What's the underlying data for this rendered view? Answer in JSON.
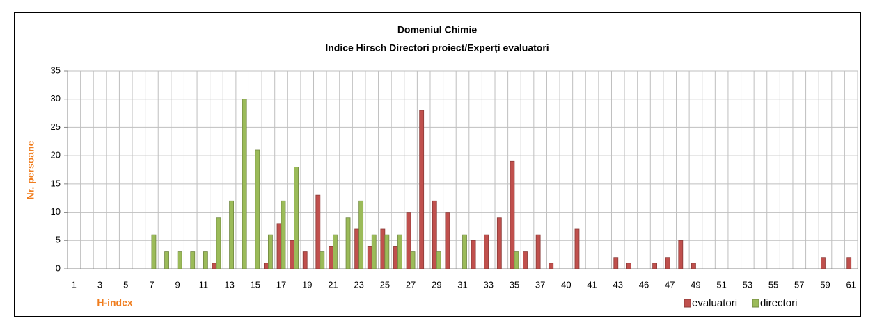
{
  "chart_data": {
    "type": "bar",
    "title": "Domeniul Chimie",
    "subtitle": "Indice Hirsch Directori proiect/Experți evaluatori",
    "y_label": "Nr. persoane",
    "x_label": "H-index",
    "categories": [
      "1",
      null,
      "3",
      null,
      "5",
      null,
      "7",
      null,
      "9",
      null,
      "11",
      null,
      "13",
      null,
      "15",
      null,
      "17",
      null,
      "19",
      null,
      "21",
      null,
      "23",
      null,
      "25",
      null,
      "27",
      null,
      "29",
      null,
      "31",
      null,
      "33",
      null,
      "35",
      null,
      "37",
      null,
      "40",
      null,
      "41",
      null,
      "43",
      null,
      "46",
      null,
      "47",
      null,
      "49",
      null,
      "51",
      null,
      "53",
      null,
      "55",
      null,
      "57",
      null,
      "59",
      null,
      "61"
    ],
    "series": [
      {
        "name": "evaluatori",
        "color": "#c0504d",
        "values": [
          null,
          null,
          null,
          null,
          null,
          null,
          null,
          null,
          null,
          null,
          null,
          1,
          null,
          null,
          null,
          1,
          8,
          5,
          3,
          13,
          4,
          null,
          7,
          4,
          7,
          4,
          10,
          28,
          12,
          10,
          null,
          5,
          6,
          9,
          19,
          3,
          6,
          1,
          null,
          7,
          null,
          null,
          2,
          1,
          null,
          1,
          2,
          5,
          1,
          null,
          null,
          null,
          null,
          null,
          null,
          null,
          null,
          null,
          2,
          null,
          2
        ]
      },
      {
        "name": "directori",
        "color": "#9bbb59",
        "values": [
          null,
          null,
          null,
          null,
          null,
          null,
          6,
          3,
          3,
          3,
          3,
          9,
          12,
          30,
          21,
          6,
          12,
          18,
          null,
          3,
          6,
          9,
          12,
          6,
          6,
          6,
          3,
          null,
          3,
          null,
          6,
          null,
          null,
          null,
          3,
          null,
          null,
          null,
          null,
          null,
          null,
          null,
          null,
          null,
          null,
          null,
          null,
          null,
          null,
          null,
          null,
          null,
          null,
          null,
          null,
          null,
          null,
          null,
          null,
          null,
          null
        ]
      }
    ],
    "ylim": [
      0,
      35
    ],
    "yticks": [
      0,
      5,
      10,
      15,
      20,
      25,
      30,
      35
    ],
    "grid": true,
    "legend": "bottom-right"
  }
}
